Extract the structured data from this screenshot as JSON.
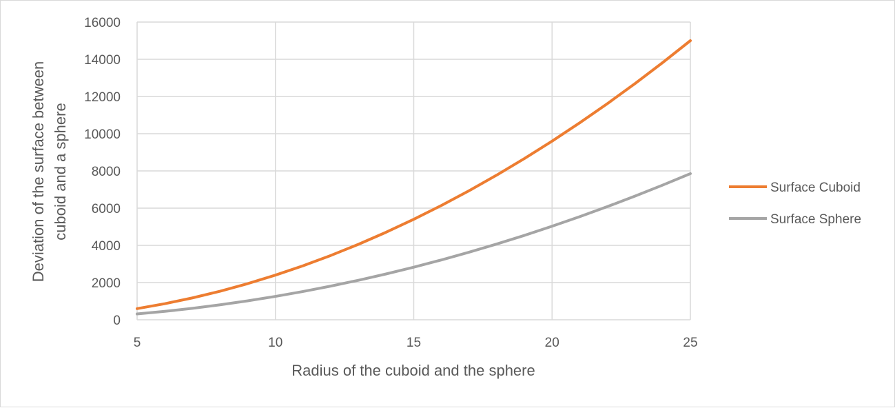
{
  "chart_data": {
    "type": "line",
    "xlabel": "Radius of the cuboid and the sphere",
    "ylabel_lines": [
      "Deviation of the surface between",
      "cuboid and a sphere"
    ],
    "xlim": [
      5,
      25
    ],
    "ylim": [
      0,
      16000
    ],
    "x_ticks": [
      5,
      10,
      15,
      20,
      25
    ],
    "y_ticks": [
      0,
      2000,
      4000,
      6000,
      8000,
      10000,
      12000,
      14000,
      16000
    ],
    "grid": true,
    "legend_position": "right",
    "x": [
      5,
      6,
      7,
      8,
      9,
      10,
      11,
      12,
      13,
      14,
      15,
      16,
      17,
      18,
      19,
      20,
      21,
      22,
      23,
      24,
      25
    ],
    "series": [
      {
        "name": "Surface Cuboid",
        "color": "#ED7D31",
        "values": [
          600,
          864,
          1176,
          1536,
          1944,
          2400,
          2904,
          3456,
          4056,
          4704,
          5400,
          6144,
          6936,
          7776,
          8664,
          9600,
          10584,
          11616,
          12696,
          13824,
          15000
        ]
      },
      {
        "name": "Surface Sphere",
        "color": "#A5A5A5",
        "values": [
          314,
          452,
          616,
          804,
          1018,
          1257,
          1521,
          1810,
          2124,
          2463,
          2827,
          3217,
          3632,
          4072,
          4536,
          5027,
          5542,
          6082,
          6648,
          7238,
          7854
        ]
      }
    ]
  }
}
